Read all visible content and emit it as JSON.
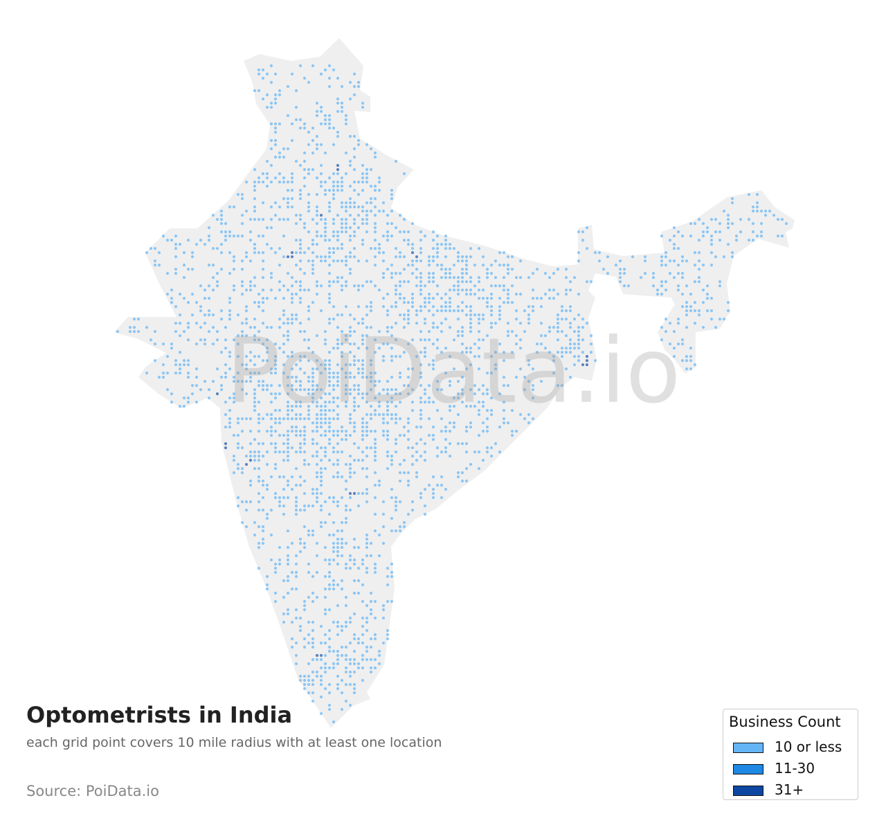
{
  "title": "Optometrists in India",
  "subtitle": "each grid point covers 10 mile radius with at least one location",
  "source": "Source: PoiData.io",
  "watermark": "PoiData.io",
  "legend": {
    "title": "Business Count",
    "items": [
      {
        "label": "10 or less",
        "color": "#64b5f6"
      },
      {
        "label": "11-30",
        "color": "#1e88e5"
      },
      {
        "label": "31+",
        "color": "#0d47a1"
      }
    ]
  }
}
